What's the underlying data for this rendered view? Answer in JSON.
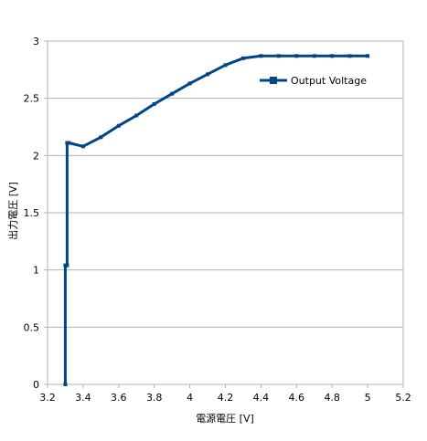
{
  "chart_data": {
    "type": "line",
    "title": "",
    "xlabel": "電源電圧 [V]",
    "ylabel": "出力電圧 [V]",
    "xlim": [
      3.2,
      5.2
    ],
    "ylim": [
      0,
      3
    ],
    "xticks": [
      3.2,
      3.4,
      3.6,
      3.8,
      4,
      4.2,
      4.4,
      4.6,
      4.8,
      5,
      5.2
    ],
    "yticks": [
      0,
      0.5,
      1,
      1.5,
      2,
      2.5,
      3
    ],
    "xtick_labels": [
      "3.2",
      "3.4",
      "3.6",
      "3.8",
      "4",
      "4.2",
      "4.4",
      "4.6",
      "4.8",
      "5",
      "5.2"
    ],
    "ytick_labels": [
      "0",
      "0.5",
      "1",
      "1.5",
      "2",
      "2.5",
      "3"
    ],
    "grid": "horizontal",
    "legend_position": "top-right",
    "series": [
      {
        "name": "Output Voltage",
        "color": "#004586",
        "marker": "square",
        "x": [
          3.3,
          3.3,
          3.31,
          3.31,
          3.32,
          3.4,
          3.5,
          3.6,
          3.7,
          3.8,
          3.9,
          4.0,
          4.1,
          4.2,
          4.3,
          4.4,
          4.5,
          4.6,
          4.7,
          4.8,
          4.9,
          5.0
        ],
        "y": [
          0.0,
          1.04,
          1.04,
          2.11,
          2.11,
          2.08,
          2.16,
          2.26,
          2.35,
          2.45,
          2.54,
          2.63,
          2.71,
          2.79,
          2.85,
          2.87,
          2.87,
          2.87,
          2.87,
          2.87,
          2.87,
          2.87
        ]
      }
    ]
  }
}
